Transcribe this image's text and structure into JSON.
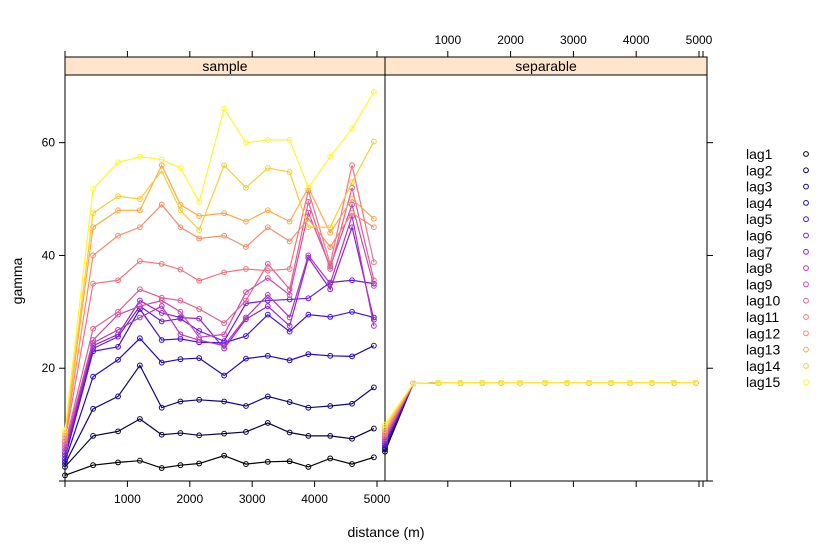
{
  "chart_data": {
    "type": "line",
    "xlabel": "distance (m)",
    "ylabel": "gamma",
    "xlim": [
      0,
      5000
    ],
    "ylim": [
      0,
      72
    ],
    "x_ticks": [
      1000,
      2000,
      3000,
      4000,
      5000
    ],
    "y_ticks": [
      20,
      40,
      60
    ],
    "panels": [
      {
        "name": "sample"
      },
      {
        "name": "separable"
      }
    ],
    "legend_position": "right",
    "series": [
      {
        "name": "lag1",
        "color": "#000000"
      },
      {
        "name": "lag2",
        "color": "#0a0540"
      },
      {
        "name": "lag3",
        "color": "#12087a"
      },
      {
        "name": "lag4",
        "color": "#2608b3"
      },
      {
        "name": "lag5",
        "color": "#4410d8"
      },
      {
        "name": "lag6",
        "color": "#6d1ad8"
      },
      {
        "name": "lag7",
        "color": "#9224d0"
      },
      {
        "name": "lag8",
        "color": "#b036c0"
      },
      {
        "name": "lag9",
        "color": "#c94caf"
      },
      {
        "name": "lag10",
        "color": "#dd5f98"
      },
      {
        "name": "lag11",
        "color": "#ec7582"
      },
      {
        "name": "lag12",
        "color": "#f48e66"
      },
      {
        "name": "lag13",
        "color": "#f8aa4a"
      },
      {
        "name": "lag14",
        "color": "#fbcc34"
      },
      {
        "name": "lag15",
        "color": "#fff533"
      }
    ],
    "sample_x": [
      0,
      450,
      850,
      1200,
      1550,
      1850,
      2150,
      2550,
      2900,
      3250,
      3600,
      3900,
      4250,
      4600,
      4950
    ],
    "sample_y": [
      [
        1.0,
        2.8,
        3.3,
        3.6,
        2.3,
        2.8,
        3.1,
        4.5,
        3.0,
        3.4,
        3.5,
        2.5,
        4.0,
        3.0,
        4.2
      ],
      [
        2.5,
        8.0,
        8.8,
        11.0,
        8.2,
        8.5,
        8.1,
        8.4,
        8.7,
        10.3,
        8.6,
        8.0,
        8.0,
        7.5,
        9.3
      ],
      [
        3.0,
        12.8,
        15.0,
        20.5,
        13.0,
        14.1,
        14.4,
        14.1,
        13.3,
        15.0,
        14.0,
        13.0,
        13.3,
        13.7,
        16.6
      ],
      [
        3.5,
        18.5,
        21.5,
        25.3,
        21.0,
        21.6,
        21.8,
        18.7,
        21.7,
        22.2,
        21.4,
        22.5,
        22.2,
        22.1,
        24.0
      ],
      [
        4.0,
        23.0,
        23.8,
        30.5,
        25.0,
        25.2,
        24.6,
        24.5,
        25.7,
        29.5,
        26.5,
        29.5,
        29.1,
        30.0,
        29.0
      ],
      [
        4.5,
        23.5,
        25.6,
        31.0,
        28.3,
        28.8,
        26.6,
        24.8,
        31.5,
        32.0,
        32.2,
        32.4,
        35.2,
        35.6,
        35.0
      ],
      [
        5.0,
        24.0,
        26.0,
        32.0,
        29.8,
        29.0,
        28.8,
        23.5,
        28.7,
        31.0,
        27.5,
        39.6,
        34.0,
        45.0,
        28.6
      ],
      [
        5.5,
        24.5,
        26.8,
        29.0,
        31.0,
        26.0,
        25.0,
        24.0,
        29.0,
        33.0,
        29.0,
        40.0,
        35.0,
        47.0,
        27.5
      ],
      [
        6.0,
        25.0,
        29.5,
        31.0,
        32.0,
        30.0,
        25.5,
        26.0,
        33.5,
        36.0,
        33.0,
        47.6,
        38.0,
        49.0,
        34.6
      ],
      [
        6.5,
        27.0,
        30.0,
        34.0,
        32.5,
        32.0,
        30.5,
        28.0,
        32.0,
        38.5,
        34.0,
        49.5,
        37.6,
        52.0,
        35.6
      ],
      [
        7.0,
        35.0,
        35.6,
        39.0,
        38.5,
        37.5,
        35.5,
        37.0,
        37.6,
        37.3,
        37.6,
        51.5,
        38.5,
        56.0,
        38.8
      ],
      [
        7.5,
        40.0,
        43.5,
        45.0,
        49.0,
        45.0,
        43.0,
        43.5,
        41.5,
        45.0,
        42.5,
        46.5,
        41.5,
        47.5,
        45.0
      ],
      [
        8.0,
        45.0,
        48.0,
        48.0,
        56.0,
        49.0,
        47.0,
        47.5,
        46.0,
        48.0,
        46.0,
        52.0,
        44.0,
        50.0,
        46.5
      ],
      [
        8.5,
        47.5,
        50.5,
        50.0,
        55.0,
        48.0,
        44.5,
        56.0,
        52.0,
        55.5,
        54.8,
        45.0,
        45.0,
        53.0,
        60.2
      ],
      [
        9.0,
        51.8,
        56.5,
        57.5,
        57.0,
        55.5,
        49.5,
        66.0,
        60.0,
        60.5,
        60.5,
        52.0,
        57.5,
        62.5,
        69.0
      ]
    ],
    "separable_x": [
      0,
      450,
      850,
      1200,
      1550,
      1850,
      2150,
      2550,
      2900,
      3250,
      3600,
      3900,
      4250,
      4600,
      4950
    ],
    "separable_y": [
      5.0,
      17.3,
      17.4,
      17.4,
      17.4,
      17.4,
      17.4,
      17.4,
      17.4,
      17.4,
      17.4,
      17.4,
      17.4,
      17.4,
      17.4
    ],
    "separable_start": [
      5.2,
      5.6,
      5.8,
      6.0,
      6.3,
      6.6,
      7.0,
      7.3,
      7.6,
      8.0,
      8.3,
      8.6,
      9.0,
      9.5,
      10.0
    ]
  }
}
